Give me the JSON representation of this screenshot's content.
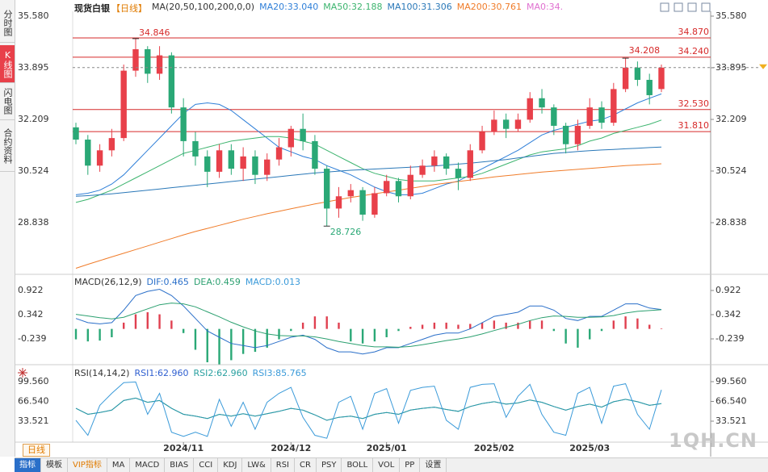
{
  "sidebar": [
    "分时图",
    "K线图",
    "闪电图",
    "合约资料"
  ],
  "header": {
    "symbol": "现货白银",
    "period": "【日线】"
  },
  "period_button": "日线",
  "toolbar": [
    "指标",
    "模板",
    "VIP指标",
    "MA",
    "MACD",
    "BIAS",
    "CCI",
    "KDJ",
    "LW&",
    "RSI",
    "CR",
    "PSY",
    "BOLL",
    "VOL",
    "PP",
    "设置"
  ],
  "watermark": "1QH.CN",
  "chart_data": [
    {
      "type": "candlestick",
      "title": "MA(20,50,100,200,0,0)",
      "categories": [
        null,
        null,
        null,
        null,
        null,
        null,
        null,
        null,
        null,
        "2024/11",
        null,
        null,
        null,
        null,
        null,
        null,
        null,
        null,
        "2024/12",
        null,
        null,
        null,
        null,
        null,
        null,
        null,
        "2025/01",
        null,
        null,
        null,
        null,
        null,
        null,
        null,
        null,
        "2025/02",
        null,
        null,
        null,
        null,
        null,
        null,
        null,
        "2025/03",
        null,
        null,
        null,
        null,
        null,
        null
      ],
      "open": [
        31.95,
        31.55,
        30.7,
        31.2,
        31.6,
        33.8,
        34.5,
        33.7,
        34.3,
        32.6,
        31.5,
        31.0,
        30.5,
        31.2,
        30.6,
        31.0,
        30.4,
        30.9,
        31.3,
        31.9,
        31.5,
        30.6,
        29.3,
        29.7,
        29.9,
        29.1,
        29.8,
        30.2,
        29.7,
        30.4,
        30.7,
        31.0,
        30.6,
        30.3,
        31.2,
        31.8,
        32.2,
        31.9,
        32.2,
        32.9,
        32.6,
        32.0,
        31.4,
        32.0,
        32.6,
        32.1,
        33.2,
        33.9,
        33.5,
        33.2
      ],
      "high": [
        32.1,
        31.7,
        31.4,
        31.9,
        34.0,
        34.846,
        34.6,
        34.6,
        34.4,
        32.9,
        31.8,
        31.2,
        31.4,
        31.4,
        31.3,
        31.2,
        31.1,
        31.6,
        32.0,
        32.4,
        31.7,
        30.7,
        30.0,
        30.1,
        30.0,
        30.0,
        30.4,
        30.3,
        30.7,
        30.9,
        31.2,
        31.1,
        30.8,
        31.4,
        32.0,
        32.5,
        32.4,
        32.4,
        33.1,
        33.2,
        32.7,
        32.1,
        32.2,
        32.9,
        32.8,
        33.4,
        34.208,
        34.1,
        33.7,
        34.0
      ],
      "low": [
        31.4,
        30.4,
        30.5,
        31.0,
        31.5,
        33.6,
        33.4,
        33.5,
        32.4,
        31.0,
        30.7,
        30.0,
        30.3,
        30.4,
        30.2,
        30.1,
        30.2,
        30.7,
        31.0,
        31.2,
        30.4,
        28.726,
        29.0,
        29.5,
        28.9,
        29.0,
        29.7,
        29.5,
        29.6,
        30.3,
        30.5,
        30.4,
        29.9,
        30.2,
        31.1,
        31.7,
        31.6,
        31.8,
        32.1,
        32.4,
        31.7,
        31.1,
        31.2,
        31.9,
        31.9,
        32.0,
        33.1,
        33.3,
        32.7,
        33.1
      ],
      "close": [
        31.55,
        30.7,
        31.2,
        31.6,
        33.8,
        34.5,
        33.7,
        34.3,
        32.6,
        31.5,
        31.0,
        30.5,
        31.2,
        30.6,
        31.0,
        30.4,
        30.9,
        31.3,
        31.9,
        31.5,
        30.6,
        29.3,
        29.7,
        29.9,
        29.1,
        29.8,
        30.2,
        29.7,
        30.4,
        30.7,
        31.0,
        30.6,
        30.3,
        31.2,
        31.8,
        32.2,
        31.9,
        32.2,
        32.9,
        32.6,
        32.0,
        31.4,
        32.0,
        32.6,
        32.1,
        33.2,
        33.9,
        33.5,
        33.0,
        33.9
      ],
      "up_color": "#e8404a",
      "down_color": "#2aa876",
      "series": [
        {
          "label": "MA20:33.040",
          "color": "#2f7fd8",
          "values": [
            29.75,
            29.8,
            29.9,
            30.1,
            30.4,
            30.8,
            31.2,
            31.6,
            32.0,
            32.4,
            32.7,
            32.75,
            32.7,
            32.5,
            32.2,
            31.9,
            31.6,
            31.3,
            31.15,
            31.0,
            30.9,
            30.7,
            30.55,
            30.4,
            30.2,
            30.0,
            29.85,
            29.75,
            29.75,
            29.8,
            29.95,
            30.1,
            30.2,
            30.4,
            30.6,
            30.8,
            31.0,
            31.2,
            31.45,
            31.7,
            31.85,
            31.95,
            32.05,
            32.15,
            32.2,
            32.35,
            32.55,
            32.75,
            32.9,
            33.04
          ]
        },
        {
          "label": "MA50:32.188",
          "color": "#3cb46e",
          "values": [
            29.5,
            29.6,
            29.75,
            29.9,
            30.1,
            30.3,
            30.5,
            30.7,
            30.9,
            31.1,
            31.2,
            31.3,
            31.4,
            31.5,
            31.55,
            31.6,
            31.65,
            31.65,
            31.6,
            31.5,
            31.4,
            31.2,
            31.0,
            30.8,
            30.6,
            30.45,
            30.35,
            30.25,
            30.2,
            30.2,
            30.2,
            30.25,
            30.3,
            30.35,
            30.45,
            30.6,
            30.75,
            30.9,
            31.05,
            31.15,
            31.2,
            31.25,
            31.35,
            31.5,
            31.6,
            31.75,
            31.85,
            31.95,
            32.05,
            32.188
          ]
        },
        {
          "label": "MA100:31.306",
          "color": "#2a78b8",
          "values": [
            29.7,
            29.72,
            29.75,
            29.78,
            29.82,
            29.86,
            29.9,
            29.94,
            29.98,
            30.02,
            30.06,
            30.1,
            30.14,
            30.18,
            30.22,
            30.26,
            30.3,
            30.34,
            30.38,
            30.42,
            30.46,
            30.49,
            30.52,
            30.55,
            30.57,
            30.59,
            30.61,
            30.63,
            30.65,
            30.67,
            30.69,
            30.72,
            30.75,
            30.78,
            30.82,
            30.86,
            30.9,
            30.95,
            31.0,
            31.05,
            31.1,
            31.13,
            31.16,
            31.19,
            31.21,
            31.23,
            31.25,
            31.27,
            31.29,
            31.306
          ]
        },
        {
          "label": "MA200:30.761",
          "color": "#f07c2a",
          "values": [
            27.35,
            27.48,
            27.6,
            27.72,
            27.84,
            27.96,
            28.08,
            28.2,
            28.32,
            28.44,
            28.55,
            28.65,
            28.75,
            28.85,
            28.95,
            29.04,
            29.13,
            29.21,
            29.29,
            29.37,
            29.45,
            29.52,
            29.59,
            29.66,
            29.72,
            29.78,
            29.84,
            29.9,
            29.96,
            30.02,
            30.08,
            30.13,
            30.18,
            30.23,
            30.28,
            30.33,
            30.37,
            30.41,
            30.45,
            30.49,
            30.52,
            30.55,
            30.58,
            30.61,
            30.64,
            30.67,
            30.7,
            30.72,
            30.74,
            30.761
          ]
        }
      ],
      "extra_legend": {
        "label": "MA0:34.",
        "color": "#e070d0"
      },
      "levels": [
        {
          "value": 34.87,
          "label": "34.870"
        },
        {
          "value": 34.24,
          "label": "34.240"
        },
        {
          "value": 32.53,
          "label": "32.530"
        },
        {
          "value": 31.81,
          "label": "31.810"
        }
      ],
      "level_color": "#d62a2a",
      "ylim": [
        27.205,
        35.738
      ],
      "yticks": [
        {
          "value": 35.58,
          "label": "35.580"
        },
        33.895,
        32.209,
        30.524,
        28.838
      ]
    },
    {
      "type": "macd",
      "title": "MACD(26,12,9)",
      "series": [
        {
          "label": "DIF:0.465",
          "color": "#2a6fc9",
          "values": [
            0.25,
            0.15,
            0.12,
            0.15,
            0.45,
            0.8,
            0.9,
            0.95,
            0.8,
            0.55,
            0.25,
            -0.05,
            -0.2,
            -0.35,
            -0.4,
            -0.45,
            -0.4,
            -0.3,
            -0.2,
            -0.15,
            -0.25,
            -0.45,
            -0.55,
            -0.55,
            -0.6,
            -0.55,
            -0.45,
            -0.45,
            -0.35,
            -0.25,
            -0.15,
            -0.1,
            -0.1,
            0.0,
            0.15,
            0.3,
            0.35,
            0.4,
            0.55,
            0.55,
            0.45,
            0.25,
            0.2,
            0.3,
            0.3,
            0.45,
            0.6,
            0.6,
            0.5,
            0.465
          ]
        },
        {
          "label": "DEA:0.459",
          "color": "#2ca070",
          "values": [
            0.35,
            0.31,
            0.27,
            0.24,
            0.28,
            0.38,
            0.48,
            0.58,
            0.62,
            0.6,
            0.53,
            0.41,
            0.29,
            0.16,
            0.05,
            -0.05,
            -0.12,
            -0.16,
            -0.17,
            -0.17,
            -0.19,
            -0.24,
            -0.3,
            -0.35,
            -0.4,
            -0.43,
            -0.43,
            -0.44,
            -0.42,
            -0.38,
            -0.33,
            -0.28,
            -0.24,
            -0.19,
            -0.12,
            -0.04,
            0.04,
            0.11,
            0.2,
            0.27,
            0.31,
            0.3,
            0.28,
            0.28,
            0.29,
            0.32,
            0.38,
            0.42,
            0.44,
            0.459
          ]
        }
      ],
      "histogram": {
        "label": "MACD:0.013",
        "color": "#3a9ad9",
        "up_color": "#e04050",
        "down_color": "#2aa876",
        "values": [
          -0.25,
          -0.3,
          -0.28,
          -0.2,
          0.15,
          0.35,
          0.4,
          0.35,
          0.2,
          -0.1,
          -0.5,
          -0.8,
          -0.85,
          -0.75,
          -0.6,
          -0.55,
          -0.45,
          -0.25,
          -0.05,
          0.15,
          0.3,
          0.3,
          0.15,
          -0.3,
          -0.35,
          -0.3,
          -0.2,
          -0.05,
          0.05,
          0.1,
          0.15,
          0.15,
          0.1,
          0.12,
          0.15,
          0.2,
          0.15,
          0.15,
          0.2,
          0.2,
          -0.05,
          -0.35,
          -0.45,
          -0.25,
          -0.05,
          0.2,
          0.3,
          0.25,
          0.1,
          0.013
        ]
      },
      "ylim": [
        -0.858,
        1.27
      ],
      "yticks": [
        0.922,
        0.342,
        -0.239
      ]
    },
    {
      "type": "line",
      "title": "RSI(14,14,2)",
      "series": [
        {
          "label": "RSI1:62.960",
          "color": "#3060d0",
          "values": [
            55,
            45,
            48,
            52,
            68,
            72,
            65,
            68,
            55,
            45,
            42,
            38,
            45,
            42,
            46,
            42,
            46,
            50,
            55,
            52,
            44,
            35,
            40,
            42,
            38,
            45,
            48,
            45,
            52,
            55,
            57,
            53,
            50,
            58,
            63,
            66,
            62,
            64,
            69,
            65,
            58,
            52,
            58,
            62,
            57,
            66,
            70,
            66,
            60,
            62.96
          ]
        },
        {
          "label": "RSI2:62.960",
          "color": "#2aa0a0",
          "values": [
            55,
            45,
            48,
            52,
            68,
            72,
            65,
            68,
            55,
            45,
            42,
            38,
            45,
            42,
            46,
            42,
            46,
            50,
            55,
            52,
            44,
            35,
            40,
            42,
            38,
            45,
            48,
            45,
            52,
            55,
            57,
            53,
            50,
            58,
            63,
            66,
            62,
            64,
            69,
            65,
            58,
            52,
            58,
            62,
            57,
            66,
            70,
            66,
            60,
            62.96
          ]
        },
        {
          "label": "RSI3:85.765",
          "color": "#3a9ad9",
          "values": [
            35,
            10,
            60,
            80,
            98,
            99,
            45,
            80,
            15,
            8,
            15,
            8,
            70,
            25,
            65,
            20,
            65,
            80,
            90,
            40,
            10,
            5,
            65,
            75,
            20,
            80,
            88,
            30,
            85,
            90,
            92,
            35,
            20,
            90,
            95,
            96,
            40,
            75,
            95,
            45,
            15,
            10,
            80,
            90,
            30,
            92,
            96,
            45,
            20,
            85.765
          ]
        }
      ],
      "ylim": [
        -1.52,
        106.3
      ],
      "yticks": [
        {
          "value": 99.56,
          "label": "99.560"
        },
        {
          "value": 66.54,
          "label": "66.540"
        },
        33.521
      ]
    }
  ]
}
